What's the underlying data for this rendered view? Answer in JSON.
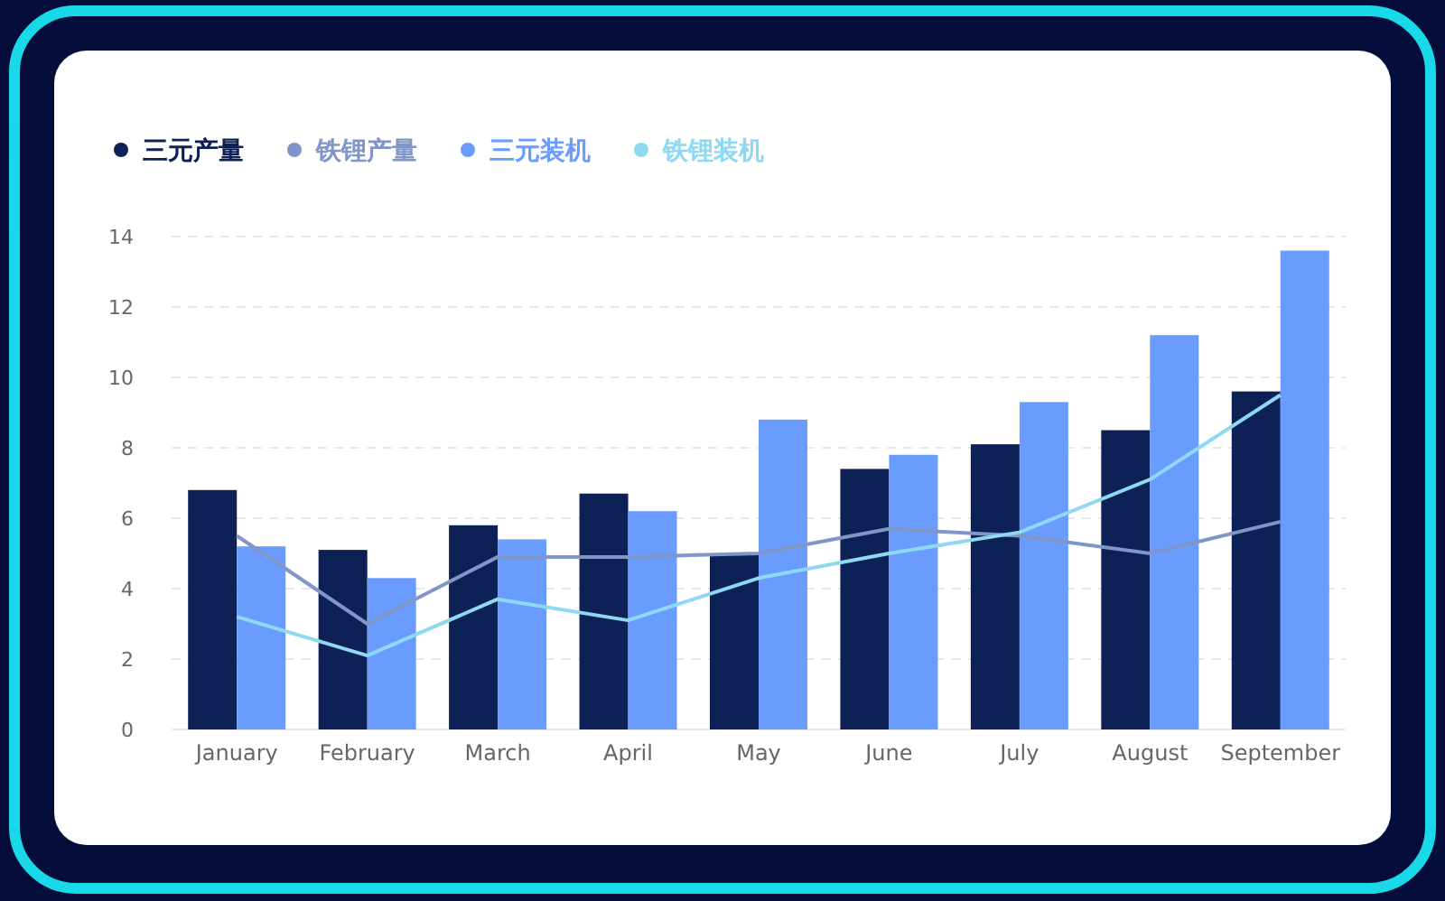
{
  "chart_data": {
    "type": "bar",
    "categories": [
      "January",
      "February",
      "March",
      "April",
      "May",
      "June",
      "July",
      "August",
      "September"
    ],
    "series": [
      {
        "name": "三元产量",
        "color": "#0d2157",
        "values": [
          6.8,
          5.1,
          5.8,
          6.7,
          5.0,
          7.4,
          8.1,
          8.5,
          9.6
        ]
      },
      {
        "name": "铁锂产量",
        "type": "line",
        "color": "#8096c8",
        "values": [
          5.5,
          3.0,
          4.9,
          4.9,
          5.0,
          5.7,
          5.5,
          5.0,
          5.9
        ]
      },
      {
        "name": "三元装机",
        "color": "#6a9cff",
        "values": [
          5.2,
          4.3,
          5.4,
          6.2,
          8.8,
          7.8,
          9.3,
          11.2,
          13.6
        ]
      },
      {
        "name": "铁锂装机",
        "type": "line",
        "color": "#8fd8f2",
        "values": [
          3.2,
          2.1,
          3.7,
          3.1,
          4.3,
          5.0,
          5.6,
          7.1,
          9.5
        ]
      }
    ],
    "ylim": [
      0,
      14
    ],
    "yticks": [
      0,
      2,
      4,
      6,
      8,
      10,
      12,
      14
    ],
    "grid": "y",
    "legend": "top left"
  }
}
